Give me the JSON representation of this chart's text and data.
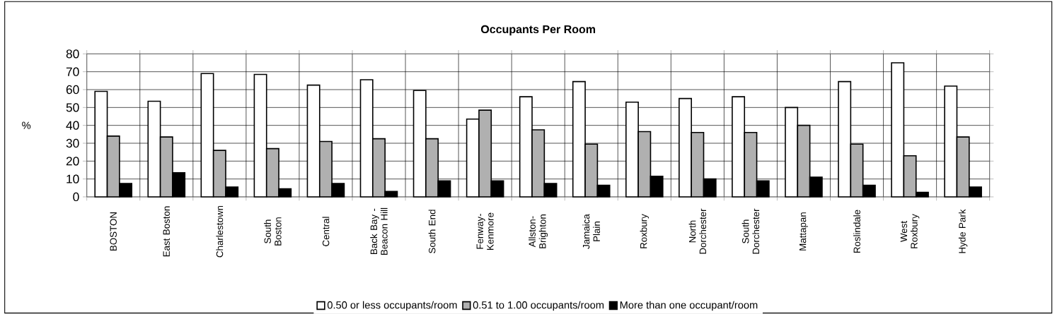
{
  "chart_data": {
    "type": "bar",
    "title": "Occupants Per Room",
    "ylabel": "%",
    "categories": [
      "BOSTON",
      "East Boston",
      "Charlestown",
      "South Boston",
      "Central",
      "Back Bay - Beacon Hill",
      "South End",
      "Fenway-Kenmore",
      "Allston-Brighton",
      "Jamaica Plain",
      "Roxbury",
      "North Dorchester",
      "South Dorchester",
      "Mattapan",
      "Roslindale",
      "West Roxbury",
      "Hyde Park"
    ],
    "series": [
      {
        "name": "0.50 or less occupants/room",
        "color": "#ffffff",
        "values": [
          59,
          53.5,
          69,
          68.5,
          62.5,
          65.5,
          59.5,
          43.5,
          56,
          64.5,
          53,
          55,
          56,
          50,
          64.5,
          75,
          62
        ]
      },
      {
        "name": "0.51 to 1.00 occupants/room",
        "color": "#b0b0b0",
        "values": [
          34,
          33.5,
          26,
          27,
          31,
          32.5,
          32.5,
          48.5,
          37.5,
          29.5,
          36.5,
          36,
          36,
          40,
          29.5,
          23,
          33.5
        ]
      },
      {
        "name": "More than one occupant/room",
        "color": "#000000",
        "values": [
          7.5,
          13.5,
          5.5,
          4.5,
          7.5,
          3,
          9,
          9,
          7.5,
          6.5,
          11.5,
          10,
          9,
          11,
          6.5,
          2.5,
          5.5
        ]
      }
    ],
    "ylim": [
      0,
      80
    ],
    "yticks": [
      0,
      10,
      20,
      30,
      40,
      50,
      60,
      70,
      80
    ],
    "grid": true,
    "legend": "bottom"
  }
}
